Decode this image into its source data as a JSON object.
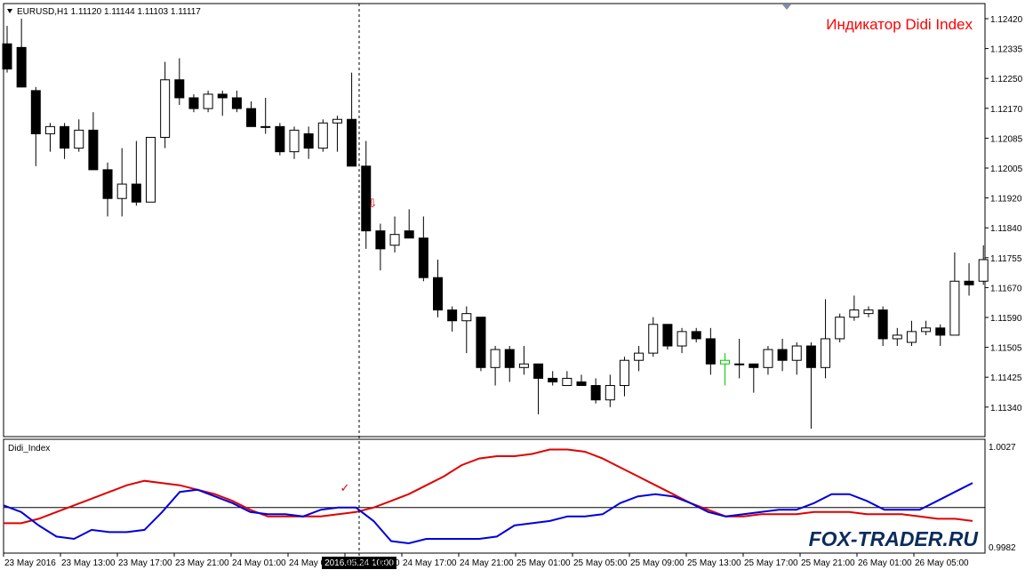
{
  "main": {
    "symbol_header": "EURUSD,H1  1.11120 1.11144 1.11103 1.11117",
    "indicator_title": "Индикатор Didi Index",
    "price_labels": [
      "1.12420",
      "1.12335",
      "1.12250",
      "1.12170",
      "1.12085",
      "1.12005",
      "1.11920",
      "1.11840",
      "1.11755",
      "1.11670",
      "1.11590",
      "1.11505",
      "1.11425",
      "1.11340"
    ],
    "signal_arrow": "⇩"
  },
  "sub": {
    "title": "Didi_Index",
    "level_top": "1.0027",
    "level_bottom": "0.9982",
    "signal_check": "✓"
  },
  "watermark": "FOX-TRADER.RU",
  "time_axis": {
    "labels": [
      "23 May 2016",
      "23 May 13:00",
      "23 May 17:00",
      "23 May 21:00",
      "24 May 01:00",
      "24 May 0",
      "24 May 13:00",
      "24 May 17:00",
      "24 May 21:00",
      "25 May 01:00",
      "25 May 05:00",
      "25 May 09:00",
      "25 May 13:00",
      "25 May 17:00",
      "25 May 21:00",
      "26 May 01:00",
      "26 May 05:00"
    ],
    "crosshair_label": "2016.05.24 10:00"
  },
  "colors": {
    "bull": "#ffffff",
    "bear": "#000000",
    "doji_highlight": "#00cc00",
    "red_line": "#e00000",
    "blue_line": "#0000dd",
    "title_red": "#ff0000"
  },
  "chart_data": {
    "type": "candlestick",
    "symbol": "EURUSD",
    "timeframe": "H1",
    "ylim": [
      1.1128,
      1.1248
    ],
    "candles": [
      {
        "o": 1.1235,
        "h": 1.124,
        "l": 1.1227,
        "c": 1.1228
      },
      {
        "o": 1.1234,
        "h": 1.1242,
        "l": 1.1223,
        "c": 1.1223
      },
      {
        "o": 1.1222,
        "h": 1.1223,
        "l": 1.1201,
        "c": 1.121
      },
      {
        "o": 1.121,
        "h": 1.1213,
        "l": 1.1205,
        "c": 1.1212
      },
      {
        "o": 1.1212,
        "h": 1.1213,
        "l": 1.1203,
        "c": 1.1206
      },
      {
        "o": 1.1206,
        "h": 1.1214,
        "l": 1.1205,
        "c": 1.1211
      },
      {
        "o": 1.1211,
        "h": 1.1216,
        "l": 1.12,
        "c": 1.12
      },
      {
        "o": 1.12,
        "h": 1.1202,
        "l": 1.1187,
        "c": 1.1192
      },
      {
        "o": 1.1192,
        "h": 1.1206,
        "l": 1.1187,
        "c": 1.1196
      },
      {
        "o": 1.1196,
        "h": 1.1208,
        "l": 1.119,
        "c": 1.1191
      },
      {
        "o": 1.1191,
        "h": 1.1209,
        "l": 1.1191,
        "c": 1.1209
      },
      {
        "o": 1.1209,
        "h": 1.123,
        "l": 1.1206,
        "c": 1.1225
      },
      {
        "o": 1.1225,
        "h": 1.1231,
        "l": 1.1218,
        "c": 1.122
      },
      {
        "o": 1.122,
        "h": 1.1221,
        "l": 1.1216,
        "c": 1.1217
      },
      {
        "o": 1.1217,
        "h": 1.1222,
        "l": 1.1216,
        "c": 1.1221
      },
      {
        "o": 1.1221,
        "h": 1.1222,
        "l": 1.1215,
        "c": 1.122
      },
      {
        "o": 1.122,
        "h": 1.1222,
        "l": 1.1216,
        "c": 1.1217
      },
      {
        "o": 1.1217,
        "h": 1.1219,
        "l": 1.1212,
        "c": 1.1212
      },
      {
        "o": 1.1212,
        "h": 1.122,
        "l": 1.121,
        "c": 1.1212
      },
      {
        "o": 1.1212,
        "h": 1.1213,
        "l": 1.1204,
        "c": 1.1205
      },
      {
        "o": 1.1205,
        "h": 1.1212,
        "l": 1.1203,
        "c": 1.1211
      },
      {
        "o": 1.121,
        "h": 1.1212,
        "l": 1.1203,
        "c": 1.1206
      },
      {
        "o": 1.1206,
        "h": 1.1214,
        "l": 1.1205,
        "c": 1.1213
      },
      {
        "o": 1.1213,
        "h": 1.1215,
        "l": 1.1205,
        "c": 1.1214
      },
      {
        "o": 1.1214,
        "h": 1.1227,
        "l": 1.1201,
        "c": 1.1201
      },
      {
        "o": 1.1201,
        "h": 1.1208,
        "l": 1.1178,
        "c": 1.1183
      },
      {
        "o": 1.1183,
        "h": 1.1185,
        "l": 1.1172,
        "c": 1.1178
      },
      {
        "o": 1.1179,
        "h": 1.1187,
        "l": 1.1177,
        "c": 1.1182
      },
      {
        "o": 1.1183,
        "h": 1.1189,
        "l": 1.1182,
        "c": 1.1181
      },
      {
        "o": 1.1181,
        "h": 1.1187,
        "l": 1.1169,
        "c": 1.117
      },
      {
        "o": 1.117,
        "h": 1.1175,
        "l": 1.1159,
        "c": 1.1161
      },
      {
        "o": 1.1161,
        "h": 1.1162,
        "l": 1.1155,
        "c": 1.1158
      },
      {
        "o": 1.1158,
        "h": 1.1162,
        "l": 1.1149,
        "c": 1.116
      },
      {
        "o": 1.1159,
        "h": 1.1159,
        "l": 1.1144,
        "c": 1.1145
      },
      {
        "o": 1.1145,
        "h": 1.1151,
        "l": 1.114,
        "c": 1.115
      },
      {
        "o": 1.115,
        "h": 1.1151,
        "l": 1.1141,
        "c": 1.1145
      },
      {
        "o": 1.1145,
        "h": 1.1151,
        "l": 1.1143,
        "c": 1.1146
      },
      {
        "o": 1.1146,
        "h": 1.1146,
        "l": 1.1132,
        "c": 1.1142
      },
      {
        "o": 1.1142,
        "h": 1.1144,
        "l": 1.114,
        "c": 1.1141
      },
      {
        "o": 1.114,
        "h": 1.1144,
        "l": 1.114,
        "c": 1.1142
      },
      {
        "o": 1.1141,
        "h": 1.1143,
        "l": 1.114,
        "c": 1.114
      },
      {
        "o": 1.114,
        "h": 1.1142,
        "l": 1.1135,
        "c": 1.1136
      },
      {
        "o": 1.1136,
        "h": 1.1143,
        "l": 1.1134,
        "c": 1.114
      },
      {
        "o": 1.114,
        "h": 1.1148,
        "l": 1.1137,
        "c": 1.1147
      },
      {
        "o": 1.1147,
        "h": 1.1151,
        "l": 1.1144,
        "c": 1.1149
      },
      {
        "o": 1.1149,
        "h": 1.1159,
        "l": 1.1148,
        "c": 1.1157
      },
      {
        "o": 1.1157,
        "h": 1.1157,
        "l": 1.115,
        "c": 1.1151
      },
      {
        "o": 1.1151,
        "h": 1.1156,
        "l": 1.1149,
        "c": 1.1155
      },
      {
        "o": 1.1155,
        "h": 1.1156,
        "l": 1.1152,
        "c": 1.1153
      },
      {
        "o": 1.1153,
        "h": 1.1156,
        "l": 1.1143,
        "c": 1.1146
      },
      {
        "o": 1.1146,
        "h": 1.1149,
        "l": 1.114,
        "c": 1.1147
      },
      {
        "o": 1.1146,
        "h": 1.1153,
        "l": 1.1142,
        "c": 1.1146
      },
      {
        "o": 1.1146,
        "h": 1.1146,
        "l": 1.1138,
        "c": 1.1145
      },
      {
        "o": 1.1145,
        "h": 1.1151,
        "l": 1.1143,
        "c": 1.115
      },
      {
        "o": 1.115,
        "h": 1.1153,
        "l": 1.1144,
        "c": 1.1147
      },
      {
        "o": 1.1147,
        "h": 1.1152,
        "l": 1.1143,
        "c": 1.1151
      },
      {
        "o": 1.1151,
        "h": 1.1152,
        "l": 1.1128,
        "c": 1.1145
      },
      {
        "o": 1.1145,
        "h": 1.1164,
        "l": 1.1142,
        "c": 1.1153
      },
      {
        "o": 1.1153,
        "h": 1.116,
        "l": 1.1152,
        "c": 1.1159
      },
      {
        "o": 1.1159,
        "h": 1.1165,
        "l": 1.1158,
        "c": 1.1161
      },
      {
        "o": 1.116,
        "h": 1.1162,
        "l": 1.1159,
        "c": 1.1161
      },
      {
        "o": 1.1161,
        "h": 1.1162,
        "l": 1.1151,
        "c": 1.1153
      },
      {
        "o": 1.1153,
        "h": 1.1156,
        "l": 1.1151,
        "c": 1.1154
      },
      {
        "o": 1.1152,
        "h": 1.1158,
        "l": 1.1151,
        "c": 1.1155
      },
      {
        "o": 1.1155,
        "h": 1.1158,
        "l": 1.1154,
        "c": 1.1156
      },
      {
        "o": 1.1156,
        "h": 1.1157,
        "l": 1.1151,
        "c": 1.1154
      },
      {
        "o": 1.1154,
        "h": 1.1177,
        "l": 1.1154,
        "c": 1.1169
      },
      {
        "o": 1.1169,
        "h": 1.1174,
        "l": 1.1165,
        "c": 1.1168
      },
      {
        "o": 1.1169,
        "h": 1.1179,
        "l": 1.1168,
        "c": 1.1175
      }
    ],
    "didi_index": {
      "top": 1.0027,
      "bottom": 0.9982,
      "center": 1.0,
      "series": [
        {
          "color": "red",
          "values": [
            0.9993,
            0.9993,
            0.9995,
            0.9998,
            1.0001,
            1.0004,
            1.0007,
            1.001,
            1.0012,
            1.0011,
            1.001,
            1.0008,
            1.0006,
            1.0003,
            0.9999,
            0.9996,
            0.9996,
            0.9996,
            0.9996,
            0.9997,
            0.9998,
            1.0,
            1.0003,
            1.0006,
            1.001,
            1.0014,
            1.0019,
            1.0022,
            1.0023,
            1.0023,
            1.0024,
            1.0026,
            1.0026,
            1.0025,
            1.0022,
            1.0018,
            1.0014,
            1.001,
            1.0006,
            1.0002,
            0.9999,
            0.9996,
            0.9996,
            0.9997,
            0.9997,
            0.9997,
            0.9998,
            0.9998,
            0.9998,
            0.9997,
            0.9997,
            0.9997,
            0.9996,
            0.9995,
            0.9995,
            0.9994
          ]
        },
        {
          "color": "blue",
          "values": [
            1.0001,
            0.9998,
            0.9992,
            0.9987,
            0.9986,
            0.999,
            0.9989,
            0.9989,
            0.999,
            0.9998,
            1.0007,
            1.0008,
            1.0005,
            1.0002,
            0.9998,
            0.9997,
            0.9997,
            0.9996,
            0.9999,
            1.0,
            1.0,
            0.9994,
            0.9985,
            0.9984,
            0.9986,
            0.9986,
            0.9986,
            0.9986,
            0.9987,
            0.9992,
            0.9993,
            0.9994,
            0.9996,
            0.9996,
            0.9997,
            1.0002,
            1.0005,
            1.0006,
            1.0005,
            1.0002,
            0.9998,
            0.9996,
            0.9997,
            0.9998,
            0.9999,
            0.9999,
            1.0002,
            1.0006,
            1.0006,
            1.0003,
            0.9999,
            0.9999,
            0.9999,
            1.0003,
            1.0007,
            1.0011
          ]
        }
      ]
    }
  }
}
